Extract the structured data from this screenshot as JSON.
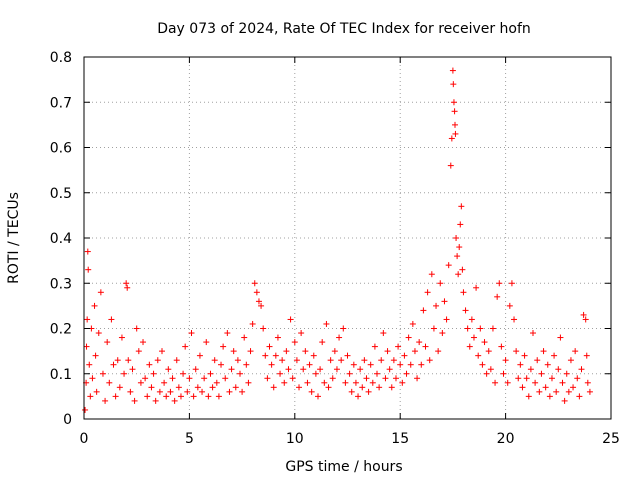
{
  "chart_data": {
    "type": "scatter",
    "title": "Day 073 of 2024, Rate Of TEC Index for receiver hofn",
    "xlabel": "GPS time / hours",
    "ylabel": "ROTI / TECUs",
    "xlim": [
      0,
      25
    ],
    "ylim": [
      0,
      0.8
    ],
    "x_ticks": [
      0,
      5,
      10,
      15,
      20,
      25
    ],
    "y_ticks": [
      0,
      0.1,
      0.2,
      0.3,
      0.4,
      0.5,
      0.6,
      0.7,
      0.8
    ],
    "x_tick_labels": [
      "0",
      "5",
      "10",
      "15",
      "20",
      "25"
    ],
    "y_tick_labels": [
      "0",
      "0.1",
      "0.2",
      "0.3",
      "0.4",
      "0.5",
      "0.6",
      "0.7",
      "0.8"
    ],
    "grid": true,
    "marker": "+",
    "color": "#ff0000",
    "series": [
      {
        "name": "ROTI",
        "points": [
          [
            0.05,
            0.02
          ],
          [
            0.1,
            0.08
          ],
          [
            0.12,
            0.16
          ],
          [
            0.15,
            0.22
          ],
          [
            0.18,
            0.37
          ],
          [
            0.2,
            0.33
          ],
          [
            0.25,
            0.12
          ],
          [
            0.3,
            0.05
          ],
          [
            0.35,
            0.2
          ],
          [
            0.4,
            0.09
          ],
          [
            0.5,
            0.25
          ],
          [
            0.55,
            0.14
          ],
          [
            0.6,
            0.06
          ],
          [
            0.7,
            0.19
          ],
          [
            0.8,
            0.28
          ],
          [
            0.9,
            0.1
          ],
          [
            1.0,
            0.04
          ],
          [
            1.1,
            0.17
          ],
          [
            1.2,
            0.08
          ],
          [
            1.3,
            0.22
          ],
          [
            1.4,
            0.12
          ],
          [
            1.5,
            0.05
          ],
          [
            1.6,
            0.13
          ],
          [
            1.7,
            0.07
          ],
          [
            1.8,
            0.18
          ],
          [
            1.9,
            0.1
          ],
          [
            2.0,
            0.3
          ],
          [
            2.05,
            0.29
          ],
          [
            2.1,
            0.13
          ],
          [
            2.2,
            0.06
          ],
          [
            2.3,
            0.11
          ],
          [
            2.4,
            0.04
          ],
          [
            2.5,
            0.2
          ],
          [
            2.6,
            0.15
          ],
          [
            2.7,
            0.08
          ],
          [
            2.8,
            0.17
          ],
          [
            2.9,
            0.09
          ],
          [
            3.0,
            0.05
          ],
          [
            3.1,
            0.12
          ],
          [
            3.2,
            0.07
          ],
          [
            3.3,
            0.1
          ],
          [
            3.4,
            0.04
          ],
          [
            3.5,
            0.13
          ],
          [
            3.6,
            0.06
          ],
          [
            3.7,
            0.15
          ],
          [
            3.8,
            0.08
          ],
          [
            3.9,
            0.05
          ],
          [
            4.0,
            0.11
          ],
          [
            4.1,
            0.06
          ],
          [
            4.2,
            0.09
          ],
          [
            4.3,
            0.04
          ],
          [
            4.4,
            0.13
          ],
          [
            4.5,
            0.07
          ],
          [
            4.6,
            0.05
          ],
          [
            4.7,
            0.1
          ],
          [
            4.8,
            0.16
          ],
          [
            4.9,
            0.06
          ],
          [
            5.0,
            0.09
          ],
          [
            5.1,
            0.19
          ],
          [
            5.2,
            0.05
          ],
          [
            5.3,
            0.11
          ],
          [
            5.4,
            0.07
          ],
          [
            5.5,
            0.14
          ],
          [
            5.6,
            0.06
          ],
          [
            5.7,
            0.09
          ],
          [
            5.8,
            0.17
          ],
          [
            5.9,
            0.05
          ],
          [
            6.0,
            0.1
          ],
          [
            6.1,
            0.07
          ],
          [
            6.2,
            0.13
          ],
          [
            6.3,
            0.08
          ],
          [
            6.4,
            0.05
          ],
          [
            6.5,
            0.12
          ],
          [
            6.6,
            0.16
          ],
          [
            6.7,
            0.09
          ],
          [
            6.8,
            0.19
          ],
          [
            6.9,
            0.06
          ],
          [
            7.0,
            0.11
          ],
          [
            7.1,
            0.15
          ],
          [
            7.2,
            0.07
          ],
          [
            7.3,
            0.13
          ],
          [
            7.4,
            0.1
          ],
          [
            7.5,
            0.06
          ],
          [
            7.6,
            0.18
          ],
          [
            7.7,
            0.12
          ],
          [
            7.8,
            0.08
          ],
          [
            7.9,
            0.15
          ],
          [
            8.0,
            0.21
          ],
          [
            8.1,
            0.3
          ],
          [
            8.2,
            0.28
          ],
          [
            8.3,
            0.26
          ],
          [
            8.4,
            0.25
          ],
          [
            8.5,
            0.2
          ],
          [
            8.6,
            0.14
          ],
          [
            8.7,
            0.09
          ],
          [
            8.8,
            0.16
          ],
          [
            8.9,
            0.12
          ],
          [
            9.0,
            0.07
          ],
          [
            9.1,
            0.14
          ],
          [
            9.2,
            0.18
          ],
          [
            9.3,
            0.1
          ],
          [
            9.4,
            0.13
          ],
          [
            9.5,
            0.08
          ],
          [
            9.6,
            0.15
          ],
          [
            9.7,
            0.11
          ],
          [
            9.8,
            0.22
          ],
          [
            9.9,
            0.09
          ],
          [
            10.0,
            0.17
          ],
          [
            10.1,
            0.13
          ],
          [
            10.2,
            0.07
          ],
          [
            10.3,
            0.19
          ],
          [
            10.4,
            0.11
          ],
          [
            10.5,
            0.15
          ],
          [
            10.6,
            0.08
          ],
          [
            10.7,
            0.12
          ],
          [
            10.8,
            0.06
          ],
          [
            10.9,
            0.14
          ],
          [
            11.0,
            0.1
          ],
          [
            11.1,
            0.05
          ],
          [
            11.2,
            0.11
          ],
          [
            11.3,
            0.17
          ],
          [
            11.4,
            0.08
          ],
          [
            11.5,
            0.21
          ],
          [
            11.6,
            0.07
          ],
          [
            11.7,
            0.13
          ],
          [
            11.8,
            0.09
          ],
          [
            11.9,
            0.15
          ],
          [
            12.0,
            0.11
          ],
          [
            12.1,
            0.18
          ],
          [
            12.2,
            0.13
          ],
          [
            12.3,
            0.2
          ],
          [
            12.4,
            0.08
          ],
          [
            12.5,
            0.14
          ],
          [
            12.6,
            0.1
          ],
          [
            12.7,
            0.06
          ],
          [
            12.8,
            0.12
          ],
          [
            12.9,
            0.08
          ],
          [
            13.0,
            0.05
          ],
          [
            13.1,
            0.11
          ],
          [
            13.2,
            0.07
          ],
          [
            13.3,
            0.13
          ],
          [
            13.4,
            0.09
          ],
          [
            13.5,
            0.06
          ],
          [
            13.6,
            0.12
          ],
          [
            13.7,
            0.08
          ],
          [
            13.8,
            0.16
          ],
          [
            13.9,
            0.1
          ],
          [
            14.0,
            0.07
          ],
          [
            14.1,
            0.13
          ],
          [
            14.2,
            0.19
          ],
          [
            14.3,
            0.09
          ],
          [
            14.4,
            0.15
          ],
          [
            14.5,
            0.11
          ],
          [
            14.6,
            0.07
          ],
          [
            14.7,
            0.13
          ],
          [
            14.8,
            0.09
          ],
          [
            14.9,
            0.16
          ],
          [
            15.0,
            0.12
          ],
          [
            15.1,
            0.08
          ],
          [
            15.2,
            0.14
          ],
          [
            15.3,
            0.1
          ],
          [
            15.4,
            0.18
          ],
          [
            15.5,
            0.12
          ],
          [
            15.6,
            0.21
          ],
          [
            15.7,
            0.15
          ],
          [
            15.8,
            0.09
          ],
          [
            15.9,
            0.17
          ],
          [
            16.0,
            0.12
          ],
          [
            16.1,
            0.24
          ],
          [
            16.2,
            0.16
          ],
          [
            16.3,
            0.28
          ],
          [
            16.4,
            0.13
          ],
          [
            16.5,
            0.32
          ],
          [
            16.6,
            0.2
          ],
          [
            16.7,
            0.25
          ],
          [
            16.8,
            0.15
          ],
          [
            16.9,
            0.3
          ],
          [
            17.0,
            0.19
          ],
          [
            17.1,
            0.26
          ],
          [
            17.2,
            0.22
          ],
          [
            17.3,
            0.34
          ],
          [
            17.4,
            0.56
          ],
          [
            17.45,
            0.62
          ],
          [
            17.5,
            0.77
          ],
          [
            17.52,
            0.74
          ],
          [
            17.55,
            0.7
          ],
          [
            17.58,
            0.68
          ],
          [
            17.6,
            0.65
          ],
          [
            17.62,
            0.63
          ],
          [
            17.65,
            0.4
          ],
          [
            17.7,
            0.36
          ],
          [
            17.75,
            0.32
          ],
          [
            17.8,
            0.38
          ],
          [
            17.85,
            0.43
          ],
          [
            17.9,
            0.47
          ],
          [
            17.95,
            0.33
          ],
          [
            18.0,
            0.28
          ],
          [
            18.1,
            0.24
          ],
          [
            18.2,
            0.2
          ],
          [
            18.3,
            0.16
          ],
          [
            18.4,
            0.22
          ],
          [
            18.5,
            0.18
          ],
          [
            18.6,
            0.29
          ],
          [
            18.7,
            0.14
          ],
          [
            18.8,
            0.2
          ],
          [
            18.9,
            0.12
          ],
          [
            19.0,
            0.17
          ],
          [
            19.1,
            0.1
          ],
          [
            19.2,
            0.15
          ],
          [
            19.3,
            0.11
          ],
          [
            19.4,
            0.2
          ],
          [
            19.5,
            0.08
          ],
          [
            19.6,
            0.27
          ],
          [
            19.7,
            0.3
          ],
          [
            19.8,
            0.16
          ],
          [
            19.9,
            0.1
          ],
          [
            20.0,
            0.13
          ],
          [
            20.1,
            0.08
          ],
          [
            20.2,
            0.25
          ],
          [
            20.3,
            0.3
          ],
          [
            20.4,
            0.22
          ],
          [
            20.5,
            0.15
          ],
          [
            20.6,
            0.09
          ],
          [
            20.7,
            0.12
          ],
          [
            20.8,
            0.07
          ],
          [
            20.9,
            0.14
          ],
          [
            21.0,
            0.09
          ],
          [
            21.1,
            0.05
          ],
          [
            21.2,
            0.11
          ],
          [
            21.3,
            0.19
          ],
          [
            21.4,
            0.08
          ],
          [
            21.5,
            0.13
          ],
          [
            21.6,
            0.06
          ],
          [
            21.7,
            0.1
          ],
          [
            21.8,
            0.15
          ],
          [
            21.9,
            0.07
          ],
          [
            22.0,
            0.12
          ],
          [
            22.1,
            0.05
          ],
          [
            22.2,
            0.09
          ],
          [
            22.3,
            0.14
          ],
          [
            22.4,
            0.06
          ],
          [
            22.5,
            0.11
          ],
          [
            22.6,
            0.18
          ],
          [
            22.7,
            0.08
          ],
          [
            22.8,
            0.04
          ],
          [
            22.9,
            0.1
          ],
          [
            23.0,
            0.06
          ],
          [
            23.1,
            0.13
          ],
          [
            23.2,
            0.07
          ],
          [
            23.3,
            0.15
          ],
          [
            23.4,
            0.09
          ],
          [
            23.5,
            0.05
          ],
          [
            23.6,
            0.11
          ],
          [
            23.7,
            0.23
          ],
          [
            23.8,
            0.22
          ],
          [
            23.85,
            0.14
          ],
          [
            23.9,
            0.08
          ],
          [
            24.0,
            0.06
          ]
        ]
      }
    ]
  }
}
